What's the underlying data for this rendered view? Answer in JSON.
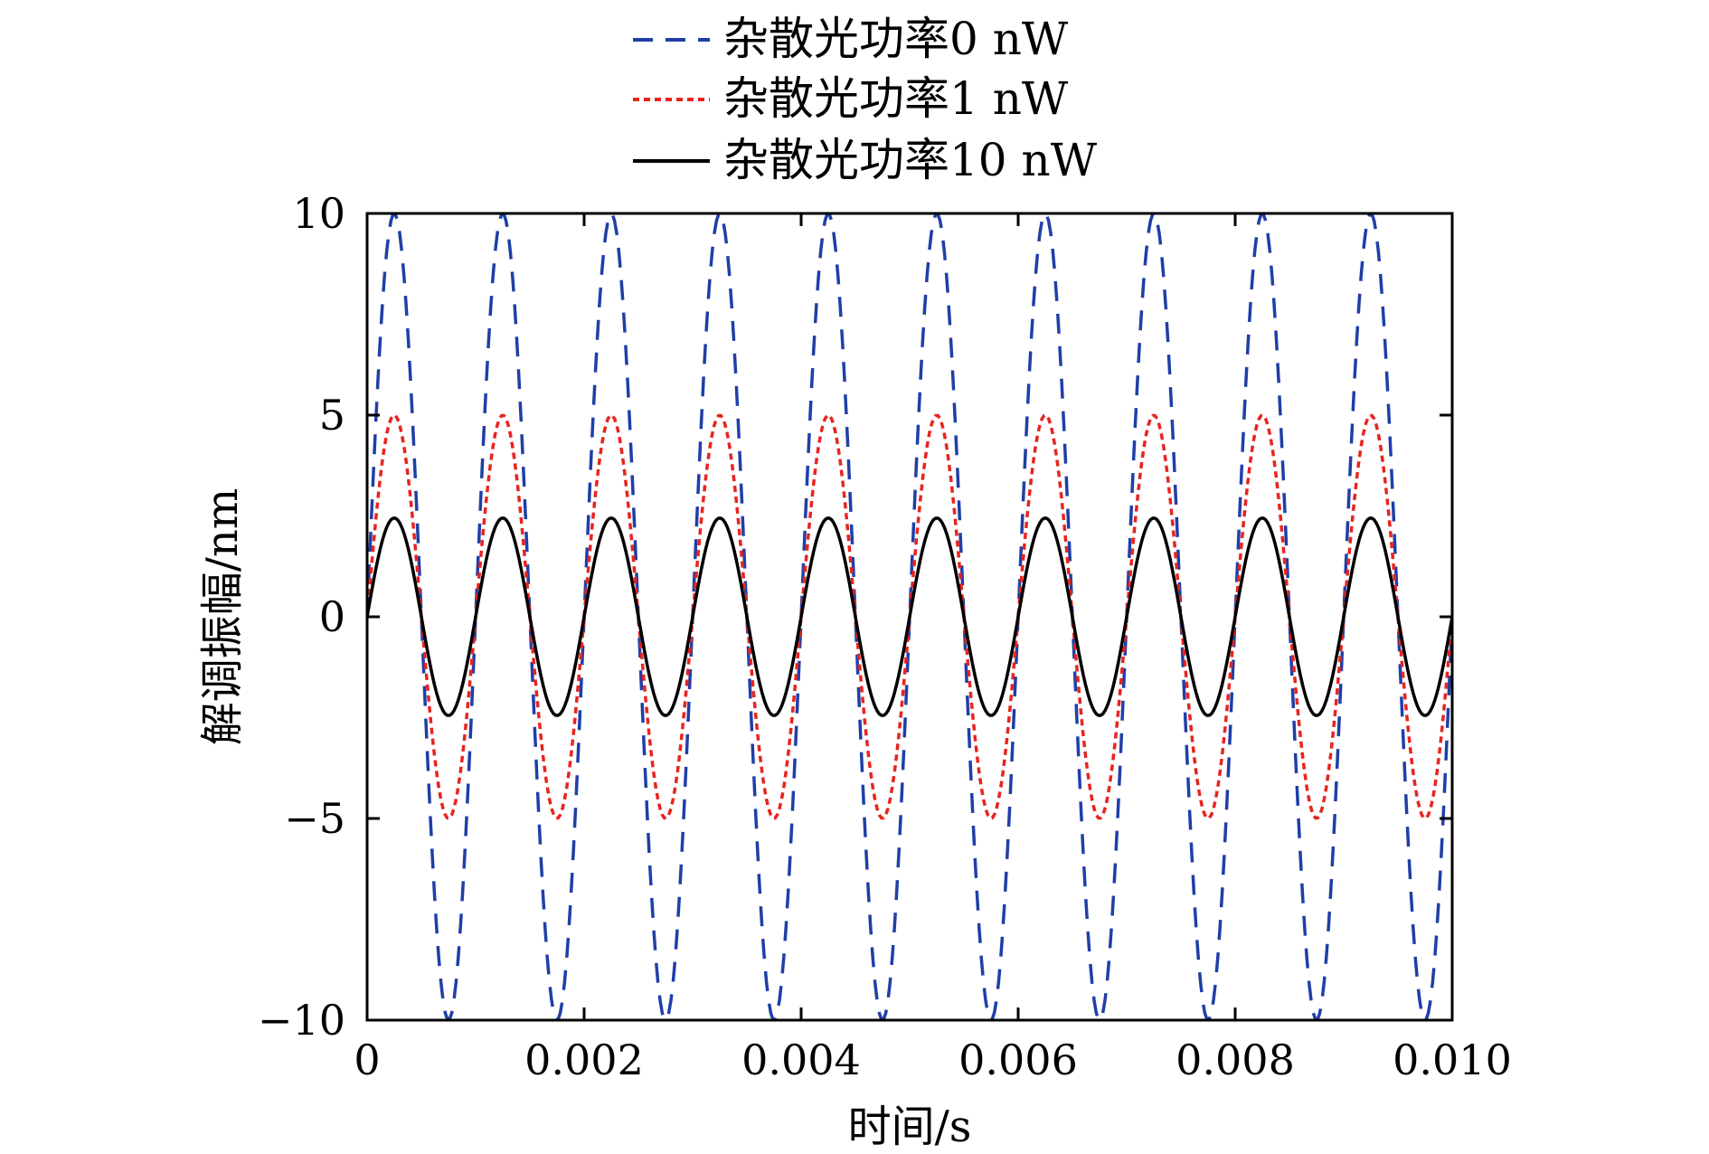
{
  "chart_data": {
    "type": "line",
    "title": "",
    "xlabel": "时间/s",
    "ylabel": "解调振幅/nm",
    "xlim": [
      0,
      0.01
    ],
    "ylim": [
      -10,
      10
    ],
    "x_ticks": [
      0,
      0.002,
      0.004,
      0.006,
      0.008,
      0.01
    ],
    "x_tick_labels": [
      "0",
      "0.002",
      "0.004",
      "0.006",
      "0.008",
      "0.010"
    ],
    "y_ticks": [
      10,
      5,
      0,
      -5,
      -10
    ],
    "y_tick_labels": [
      "10",
      "5",
      "0",
      "−5",
      "−10"
    ],
    "grid": false,
    "legend_position": "top, above plot",
    "frequency_hz": 1000,
    "x_step": 2e-05,
    "series": [
      {
        "name": "杂散光功率0 nW",
        "amplitude": 10,
        "color": "#1f3fa8",
        "style": "dashed"
      },
      {
        "name": "杂散光功率1 nW",
        "amplitude": 5,
        "color": "#e8241f",
        "style": "dotted"
      },
      {
        "name": "杂散光功率10 nW",
        "amplitude": 2.45,
        "color": "#000000",
        "style": "solid"
      }
    ]
  }
}
